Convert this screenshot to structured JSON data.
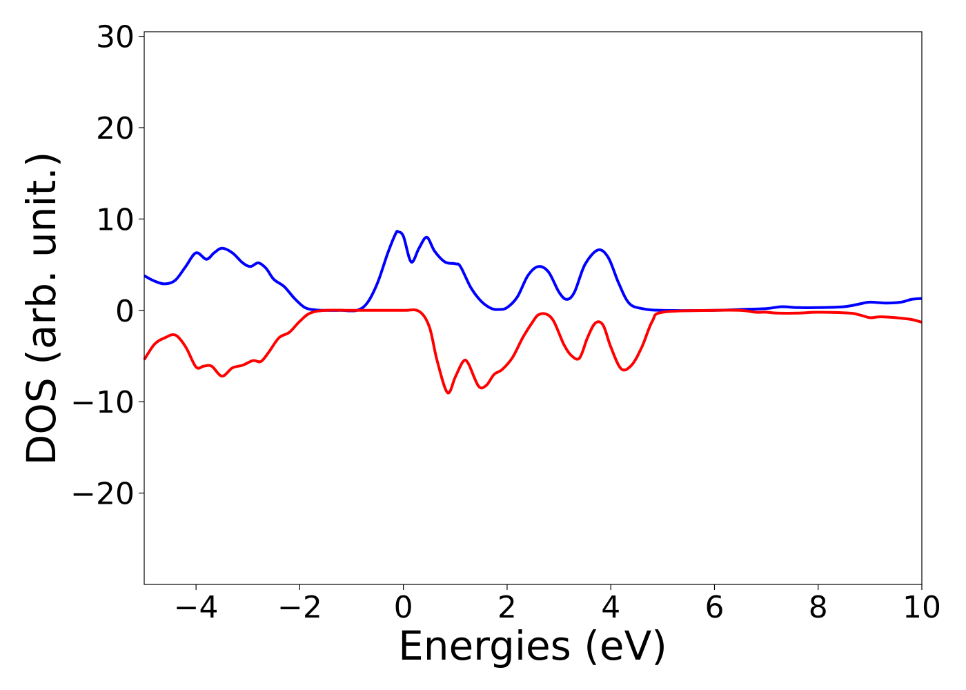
{
  "chart_data": {
    "type": "line",
    "xlabel": "Energies (eV)",
    "ylabel": "DOS (arb. unit.)",
    "xlim": [
      -5,
      10
    ],
    "ylim": [
      -30,
      30.5
    ],
    "grid": false,
    "legend": "none",
    "x_ticks": [
      {
        "value": -4,
        "label": "−4"
      },
      {
        "value": -2,
        "label": "−2"
      },
      {
        "value": 0,
        "label": "0"
      },
      {
        "value": 2,
        "label": "2"
      },
      {
        "value": 4,
        "label": "4"
      },
      {
        "value": 6,
        "label": "6"
      },
      {
        "value": 8,
        "label": "8"
      },
      {
        "value": 10,
        "label": "10"
      }
    ],
    "y_ticks": [
      {
        "value": -20,
        "label": "−20"
      },
      {
        "value": -10,
        "label": "−10"
      },
      {
        "value": 0,
        "label": "0"
      },
      {
        "value": 10,
        "label": "10"
      },
      {
        "value": 20,
        "label": "20"
      },
      {
        "value": 30,
        "label": "30"
      }
    ],
    "series": [
      {
        "color": "#0000ff",
        "x": [
          -5.0,
          -4.8,
          -4.6,
          -4.4,
          -4.2,
          -4.0,
          -3.8,
          -3.65,
          -3.5,
          -3.3,
          -3.1,
          -2.95,
          -2.8,
          -2.65,
          -2.5,
          -2.3,
          -2.1,
          -1.9,
          -1.7,
          -1.5,
          -1.2,
          -0.9,
          -0.7,
          -0.5,
          -0.3,
          -0.15,
          -0.1,
          0.0,
          0.15,
          0.3,
          0.45,
          0.6,
          0.8,
          1.0,
          1.1,
          1.3,
          1.5,
          1.7,
          1.85,
          2.0,
          2.2,
          2.4,
          2.6,
          2.8,
          3.0,
          3.15,
          3.3,
          3.5,
          3.75,
          3.95,
          4.15,
          4.35,
          4.6,
          5.0,
          6.0,
          6.5,
          7.0,
          7.3,
          7.6,
          8.0,
          8.5,
          8.8,
          9.0,
          9.3,
          9.6,
          9.8,
          10.0
        ],
        "y": [
          3.8,
          3.2,
          2.9,
          3.3,
          4.8,
          6.3,
          5.6,
          6.3,
          6.8,
          6.3,
          5.2,
          4.8,
          5.2,
          4.6,
          3.4,
          2.6,
          1.3,
          0.3,
          0.05,
          0.0,
          0.0,
          0.0,
          0.8,
          3.0,
          6.3,
          8.4,
          8.6,
          8.1,
          5.3,
          6.8,
          8.0,
          6.5,
          5.3,
          5.1,
          4.8,
          2.5,
          1.0,
          0.2,
          0.1,
          0.3,
          1.5,
          3.8,
          4.8,
          4.2,
          2.0,
          1.2,
          2.0,
          5.0,
          6.6,
          5.8,
          3.0,
          0.8,
          0.2,
          0.0,
          0.0,
          0.1,
          0.2,
          0.4,
          0.3,
          0.3,
          0.4,
          0.7,
          0.9,
          0.8,
          0.9,
          1.2,
          1.3
        ]
      },
      {
        "color": "#ff0000",
        "x": [
          -5.0,
          -4.8,
          -4.6,
          -4.4,
          -4.2,
          -4.0,
          -3.85,
          -3.7,
          -3.5,
          -3.3,
          -3.1,
          -2.9,
          -2.75,
          -2.6,
          -2.4,
          -2.2,
          -2.0,
          -1.8,
          -1.5,
          -1.0,
          -0.5,
          0.0,
          0.3,
          0.5,
          0.65,
          0.85,
          1.0,
          1.15,
          1.25,
          1.45,
          1.6,
          1.75,
          1.9,
          2.1,
          2.3,
          2.5,
          2.6,
          2.75,
          2.9,
          3.1,
          3.25,
          3.4,
          3.55,
          3.7,
          3.85,
          4.0,
          4.2,
          4.4,
          4.6,
          4.8,
          5.0,
          6.0,
          6.5,
          6.8,
          7.0,
          7.2,
          7.6,
          8.0,
          8.6,
          8.8,
          9.0,
          9.2,
          9.5,
          9.8,
          10.0
        ],
        "y": [
          -5.4,
          -3.7,
          -3.0,
          -2.7,
          -4.0,
          -6.2,
          -6.1,
          -6.1,
          -7.2,
          -6.3,
          -6.0,
          -5.5,
          -5.6,
          -4.6,
          -3.0,
          -2.4,
          -1.2,
          -0.3,
          0.0,
          0.0,
          0.0,
          0.0,
          -0.1,
          -1.8,
          -5.5,
          -9.0,
          -7.3,
          -5.6,
          -5.8,
          -8.3,
          -8.2,
          -7.0,
          -6.5,
          -5.2,
          -3.0,
          -1.2,
          -0.5,
          -0.4,
          -1.2,
          -3.8,
          -5.0,
          -5.2,
          -3.0,
          -1.4,
          -1.6,
          -4.0,
          -6.4,
          -6.0,
          -4.0,
          -1.2,
          -0.2,
          0.0,
          0.0,
          -0.2,
          -0.2,
          -0.3,
          -0.3,
          -0.2,
          -0.3,
          -0.5,
          -0.8,
          -0.7,
          -0.8,
          -1.0,
          -1.3
        ]
      }
    ]
  }
}
